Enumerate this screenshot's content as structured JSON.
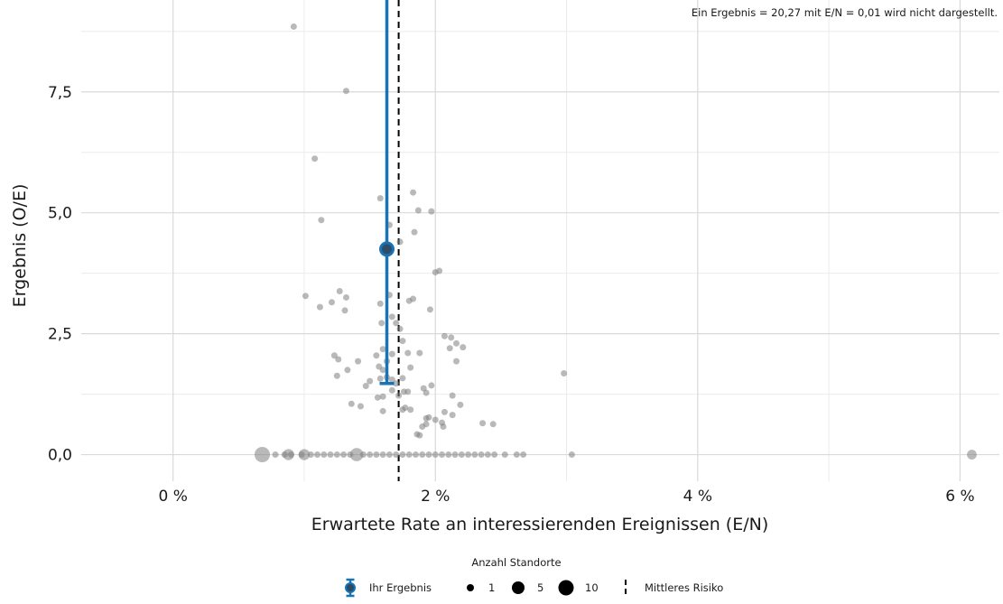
{
  "chart_data": {
    "type": "scatter",
    "note": "Ein Ergebnis = 20,27 mit E/N = 0,01 wird nicht dargestellt.",
    "xlabel": "Erwartete Rate an interessierenden Ereignissen (E/N)",
    "ylabel": "Ergebnis (O/E)",
    "xlim": [
      -0.7,
      6.3
    ],
    "ylim": [
      -0.55,
      9.4
    ],
    "x_ticks": [
      {
        "value": 0,
        "label": "0 %"
      },
      {
        "value": 2,
        "label": "2 %"
      },
      {
        "value": 4,
        "label": "4 %"
      },
      {
        "value": 6,
        "label": "6 %"
      }
    ],
    "y_ticks": [
      {
        "value": 0,
        "label": "0,0"
      },
      {
        "value": 2.5,
        "label": "2,5"
      },
      {
        "value": 5,
        "label": "5,0"
      },
      {
        "value": 7.5,
        "label": "7,5"
      }
    ],
    "mean_risk_x": 1.72,
    "own_result": {
      "x": 1.63,
      "y": 4.25,
      "ci_low": 1.47,
      "ci_high": 9.4
    },
    "colors": {
      "points": "#7f7f7f",
      "own": "#1874b4",
      "mean_line": "#000000",
      "grid": "#d9d9d9"
    },
    "points": [
      [
        0.92,
        8.85
      ],
      [
        1.32,
        7.52
      ],
      [
        1.08,
        6.12
      ],
      [
        1.13,
        4.85
      ],
      [
        1.58,
        5.3
      ],
      [
        1.83,
        5.42
      ],
      [
        1.87,
        5.05
      ],
      [
        1.97,
        5.03
      ],
      [
        1.65,
        4.75
      ],
      [
        1.84,
        4.6
      ],
      [
        2.0,
        3.77
      ],
      [
        2.03,
        3.8
      ],
      [
        1.01,
        3.28
      ],
      [
        1.12,
        3.05
      ],
      [
        1.21,
        3.15
      ],
      [
        1.27,
        3.38
      ],
      [
        1.32,
        3.25
      ],
      [
        1.31,
        2.98
      ],
      [
        1.58,
        3.12
      ],
      [
        1.65,
        3.3
      ],
      [
        1.8,
        3.18
      ],
      [
        1.83,
        3.22
      ],
      [
        1.96,
        3.0
      ],
      [
        1.67,
        2.85
      ],
      [
        1.7,
        2.72
      ],
      [
        1.73,
        2.6
      ],
      [
        1.59,
        2.72
      ],
      [
        1.73,
        4.4
      ],
      [
        1.23,
        2.05
      ],
      [
        1.26,
        1.97
      ],
      [
        1.25,
        1.63
      ],
      [
        1.33,
        1.75
      ],
      [
        1.41,
        1.93
      ],
      [
        1.55,
        2.05
      ],
      [
        1.6,
        2.18
      ],
      [
        1.57,
        1.82
      ],
      [
        1.6,
        1.75
      ],
      [
        1.63,
        1.93
      ],
      [
        1.58,
        1.57
      ],
      [
        1.67,
        2.08
      ],
      [
        1.67,
        1.55
      ],
      [
        1.75,
        1.58
      ],
      [
        1.75,
        2.35
      ],
      [
        1.79,
        2.1
      ],
      [
        1.88,
        2.1
      ],
      [
        1.81,
        1.8
      ],
      [
        1.63,
        1.6
      ],
      [
        1.7,
        1.47
      ],
      [
        2.07,
        2.45
      ],
      [
        2.12,
        2.42
      ],
      [
        2.11,
        2.2
      ],
      [
        2.16,
        2.3
      ],
      [
        2.21,
        2.22
      ],
      [
        2.16,
        1.93
      ],
      [
        1.47,
        1.42
      ],
      [
        1.5,
        1.52
      ],
      [
        1.56,
        1.18
      ],
      [
        1.6,
        1.2
      ],
      [
        1.67,
        1.33
      ],
      [
        1.72,
        1.22
      ],
      [
        1.76,
        1.3
      ],
      [
        1.79,
        1.3
      ],
      [
        1.91,
        1.37
      ],
      [
        1.93,
        1.28
      ],
      [
        1.97,
        1.43
      ],
      [
        2.13,
        1.22
      ],
      [
        1.36,
        1.05
      ],
      [
        1.43,
        1.0
      ],
      [
        1.6,
        0.9
      ],
      [
        1.75,
        0.93
      ],
      [
        1.77,
        0.97
      ],
      [
        1.81,
        0.93
      ],
      [
        1.86,
        0.42
      ],
      [
        1.88,
        0.4
      ],
      [
        1.9,
        0.58
      ],
      [
        1.93,
        0.63
      ],
      [
        1.93,
        0.75
      ],
      [
        1.95,
        0.77
      ],
      [
        2.0,
        0.72
      ],
      [
        2.05,
        0.66
      ],
      [
        2.06,
        0.58
      ],
      [
        2.07,
        0.88
      ],
      [
        2.13,
        0.82
      ],
      [
        2.19,
        1.03
      ],
      [
        2.36,
        0.65
      ],
      [
        2.44,
        0.63
      ],
      [
        2.98,
        1.68
      ],
      [
        0.78,
        0.0
      ],
      [
        0.85,
        0.0
      ],
      [
        0.9,
        0.0
      ],
      [
        0.98,
        0.0
      ],
      [
        1.05,
        0.0
      ],
      [
        1.1,
        0.0
      ],
      [
        1.15,
        0.0
      ],
      [
        1.2,
        0.0
      ],
      [
        1.25,
        0.0
      ],
      [
        1.3,
        0.0
      ],
      [
        1.35,
        0.0
      ],
      [
        1.45,
        0.0
      ],
      [
        1.5,
        0.0
      ],
      [
        1.55,
        0.0
      ],
      [
        1.6,
        0.0
      ],
      [
        1.65,
        0.0
      ],
      [
        1.7,
        0.0
      ],
      [
        1.75,
        0.0
      ],
      [
        1.8,
        0.0
      ],
      [
        1.85,
        0.0
      ],
      [
        1.9,
        0.0
      ],
      [
        1.95,
        0.0
      ],
      [
        2.0,
        0.0
      ],
      [
        2.05,
        0.0
      ],
      [
        2.1,
        0.0
      ],
      [
        2.15,
        0.0
      ],
      [
        2.2,
        0.0
      ],
      [
        2.25,
        0.0
      ],
      [
        2.3,
        0.0
      ],
      [
        2.35,
        0.0
      ],
      [
        2.4,
        0.0
      ],
      [
        2.45,
        0.0
      ],
      [
        2.53,
        0.0
      ],
      [
        2.62,
        0.0
      ],
      [
        2.67,
        0.0
      ],
      [
        3.04,
        0.0
      ]
    ],
    "large_points": [
      {
        "x": 0.68,
        "y": 0.0,
        "n": 8
      },
      {
        "x": 0.88,
        "y": 0.0,
        "n": 3
      },
      {
        "x": 1.0,
        "y": 0.0,
        "n": 3
      },
      {
        "x": 1.4,
        "y": 0.0,
        "n": 5
      },
      {
        "x": 6.09,
        "y": 0.0,
        "n": 2
      }
    ],
    "legend": {
      "title": "Anzahl Standorte",
      "own_label": "Ihr Ergebnis",
      "size_entries": [
        {
          "label": "1",
          "n": 1
        },
        {
          "label": "5",
          "n": 5
        },
        {
          "label": "10",
          "n": 10
        }
      ],
      "mean_label": "Mittleres Risiko"
    }
  }
}
